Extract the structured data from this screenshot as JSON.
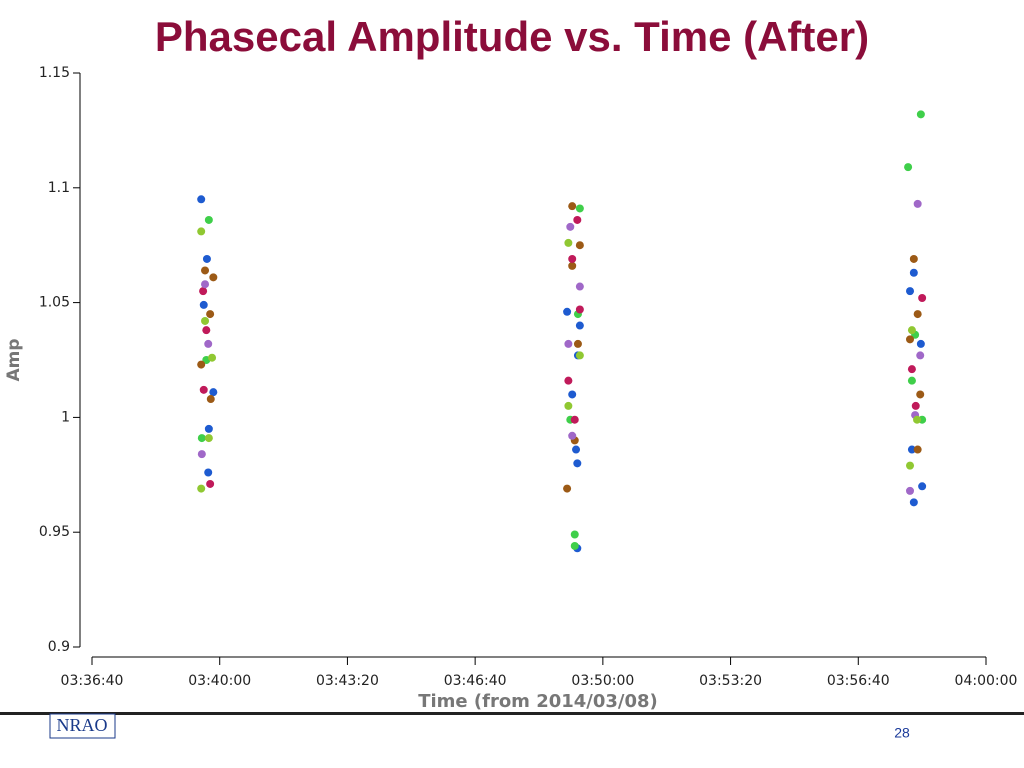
{
  "title": "Phasecal Amplitude vs. Time (After)",
  "chart_data": {
    "type": "scatter",
    "ylabel": "Amp",
    "xlabel": "Time (from 2014/03/08)",
    "xlim": [
      13000,
      14400
    ],
    "xticks": [
      {
        "value": 13000,
        "label": "03:36:40"
      },
      {
        "value": 13200,
        "label": "03:40:00"
      },
      {
        "value": 13400,
        "label": "03:43:20"
      },
      {
        "value": 13600,
        "label": "03:46:40"
      },
      {
        "value": 13800,
        "label": "03:50:00"
      },
      {
        "value": 14000,
        "label": "03:53:20"
      },
      {
        "value": 14200,
        "label": "03:56:40"
      },
      {
        "value": 14400,
        "label": "04:00:00"
      }
    ],
    "ylim": [
      0.9,
      1.15
    ],
    "yticks": [
      0.9,
      0.95,
      1,
      1.05,
      1.1,
      1.15
    ],
    "series": [
      {
        "color": "#1e5bd0",
        "x": [
          13171,
          13180,
          13175,
          13190,
          13183,
          13182,
          13744,
          13764,
          13761,
          13752,
          13758,
          13760,
          13760,
          14287,
          14281,
          14298,
          14284,
          14287,
          14300
        ],
        "values": [
          1.095,
          1.069,
          1.049,
          1.011,
          0.995,
          0.976,
          1.046,
          1.04,
          1.027,
          1.01,
          0.986,
          0.943,
          0.98,
          1.063,
          1.055,
          1.032,
          0.986,
          0.963,
          0.97
        ]
      },
      {
        "color": "#3fcf4a",
        "x": [
          13183,
          13179,
          13172,
          13764,
          13756,
          13756,
          13761,
          13749,
          14278,
          14298,
          14289,
          14300,
          14284
        ],
        "values": [
          1.086,
          1.025,
          0.991,
          1.091,
          0.949,
          0.944,
          1.045,
          0.999,
          1.109,
          1.132,
          1.036,
          0.999,
          1.016
        ]
      },
      {
        "color": "#9c5a16",
        "x": [
          13190,
          13177,
          13185,
          13171,
          13186,
          13752,
          13764,
          13752,
          13761,
          13744,
          13756,
          14287,
          14293,
          14281,
          14297,
          14293
        ],
        "values": [
          1.061,
          1.064,
          1.045,
          1.023,
          1.008,
          1.092,
          1.075,
          1.066,
          1.032,
          0.969,
          0.99,
          1.069,
          1.045,
          1.034,
          1.01,
          0.986
        ]
      },
      {
        "color": "#c01a5a",
        "x": [
          13174,
          13179,
          13175,
          13185,
          13760,
          13752,
          13764,
          13746,
          13756,
          14300,
          14284,
          14290
        ],
        "values": [
          1.055,
          1.038,
          1.012,
          0.971,
          1.086,
          1.069,
          1.047,
          1.016,
          0.999,
          1.052,
          1.021,
          1.005
        ]
      },
      {
        "color": "#a068c8",
        "x": [
          13177,
          13172,
          13182,
          13749,
          13764,
          13746,
          13752,
          14293,
          14281,
          14289,
          14297
        ],
        "values": [
          1.058,
          0.984,
          1.032,
          1.083,
          1.057,
          1.032,
          0.992,
          1.093,
          0.968,
          1.001,
          1.027
        ]
      },
      {
        "color": "#90c832",
        "x": [
          13171,
          13177,
          13188,
          13183,
          13171,
          13746,
          13764,
          13746,
          14281,
          14292,
          14284
        ],
        "values": [
          1.081,
          1.042,
          1.026,
          0.991,
          0.969,
          1.076,
          1.027,
          1.005,
          0.979,
          0.999,
          1.038
        ]
      }
    ]
  },
  "footer": {
    "logo": "NRAO",
    "page": "28"
  }
}
